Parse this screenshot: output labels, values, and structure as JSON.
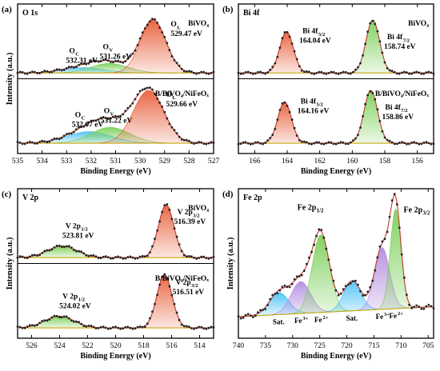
{
  "chart_data": [
    {
      "panel": "(a)",
      "type": "line",
      "element": "O 1s",
      "xlabel": "Binding Energy (eV)",
      "ylabel": "Intensity (a.u.)",
      "xlim": [
        535,
        527
      ],
      "xticks": [
        "535",
        "534",
        "533",
        "532",
        "531",
        "530",
        "529",
        "528",
        "527"
      ],
      "grid": false,
      "spectra": [
        {
          "sample": "BiVO4",
          "peaks": [
            {
              "label": "OC",
              "label_main": "O",
              "label_sub": "C",
              "energy": "532.31 eV",
              "center": 532.31,
              "height": 0.1,
              "width": 0.85,
              "color": "#4fc3f7"
            },
            {
              "label": "OV",
              "label_main": "O",
              "label_sub": "V",
              "energy": "531.26 eV",
              "center": 531.26,
              "height": 0.18,
              "width": 0.75,
              "color": "#7ccf5a"
            },
            {
              "label": "OL",
              "label_main": "O",
              "label_sub": "L",
              "energy": "529.47 eV",
              "center": 529.47,
              "height": 1.0,
              "width": 0.52,
              "color": "#e8603c"
            }
          ]
        },
        {
          "sample": "B/BiVO4/NiFeOx",
          "peaks": [
            {
              "label": "OC",
              "label_main": "O",
              "label_sub": "C",
              "energy": "532.07 eV",
              "center": 532.07,
              "height": 0.22,
              "width": 0.9,
              "color": "#4fc3f7"
            },
            {
              "label": "OV",
              "label_main": "O",
              "label_sub": "V",
              "energy": "531.22 eV",
              "center": 531.22,
              "height": 0.3,
              "width": 0.8,
              "color": "#7ccf5a"
            },
            {
              "label": "OL",
              "label_main": "O",
              "label_sub": "L",
              "energy": "529.66 eV",
              "center": 529.66,
              "height": 1.0,
              "width": 0.62,
              "color": "#e8603c"
            }
          ]
        }
      ]
    },
    {
      "panel": "(b)",
      "type": "line",
      "element": "Bi 4f",
      "xlabel": "Binding Energy (eV)",
      "ylabel": "",
      "xlim": [
        167,
        155
      ],
      "xticks": [
        "166",
        "164",
        "162",
        "160",
        "158",
        "156"
      ],
      "grid": false,
      "spectra": [
        {
          "sample": "BiVO4",
          "peaks": [
            {
              "label": "Bi 4f5/2",
              "label_main": "Bi 4f",
              "label_sub": "5/2",
              "energy": "164.04 eV",
              "center": 164.04,
              "height": 0.78,
              "width": 0.42,
              "color": "#e8603c"
            },
            {
              "label": "Bi 4f7/2",
              "label_main": "Bi 4f",
              "label_sub": "7/2",
              "energy": "158.74 eV",
              "center": 158.74,
              "height": 1.0,
              "width": 0.42,
              "color": "#7ccf5a"
            }
          ]
        },
        {
          "sample": "B/BiVO4/NiFeOx",
          "peaks": [
            {
              "label": "Bi 4f5/2",
              "label_main": "Bi 4f",
              "label_sub": "5/2",
              "energy": "164.16 eV",
              "center": 164.16,
              "height": 0.78,
              "width": 0.42,
              "color": "#e8603c"
            },
            {
              "label": "Bi 4f7/2",
              "label_main": "Bi 4f",
              "label_sub": "7/2",
              "energy": "158.86 eV",
              "center": 158.86,
              "height": 1.0,
              "width": 0.42,
              "color": "#7ccf5a"
            }
          ]
        }
      ]
    },
    {
      "panel": "(c)",
      "type": "line",
      "element": "V 2p",
      "xlabel": "Binding Energy (eV)",
      "ylabel": "Intensity (a.u.)",
      "xlim": [
        527,
        513
      ],
      "xticks": [
        "526",
        "524",
        "522",
        "520",
        "518",
        "516",
        "514"
      ],
      "grid": false,
      "spectra": [
        {
          "sample": "BiVO4",
          "peaks": [
            {
              "label": "V 2p1/2",
              "label_main": "V 2p",
              "label_sub": "1/2",
              "energy": "523.81 eV",
              "center": 523.81,
              "height": 0.22,
              "width": 1.05,
              "color": "#7ccf5a"
            },
            {
              "label": "V 2p3/2",
              "label_main": "V 2p",
              "label_sub": "3/2",
              "energy": "516.39 eV",
              "center": 516.39,
              "height": 1.0,
              "width": 0.55,
              "color": "#e8603c"
            }
          ]
        },
        {
          "sample": "B/BiVO4/NiFeOx",
          "peaks": [
            {
              "label": "V 2p1/2",
              "label_main": "V 2p",
              "label_sub": "1/2",
              "energy": "524.02 eV",
              "center": 524.02,
              "height": 0.22,
              "width": 1.05,
              "color": "#7ccf5a"
            },
            {
              "label": "V 2p3/2",
              "label_main": "V 2p",
              "label_sub": "3/2",
              "energy": "516.51 eV",
              "center": 516.51,
              "height": 1.0,
              "width": 0.55,
              "color": "#e8603c"
            }
          ]
        }
      ]
    },
    {
      "panel": "(d)",
      "type": "line",
      "element": "Fe 2p",
      "xlabel": "Binding Energy (eV)",
      "ylabel": "Intensity (a.u.)",
      "xlim": [
        740,
        704
      ],
      "xticks": [
        "740",
        "735",
        "730",
        "725",
        "720",
        "715",
        "710",
        "705"
      ],
      "grid": false,
      "spectra": [
        {
          "sample": "",
          "peaks": [
            {
              "label": "Sat.",
              "label_main": "Sat.",
              "label_sub": "",
              "center": 732.5,
              "height": 0.22,
              "width": 1.8,
              "color": "#4fc3f7"
            },
            {
              "label": "Fe3+",
              "label_main": "Fe",
              "label_sub": "3+",
              "center": 728.5,
              "height": 0.32,
              "width": 1.8,
              "color": "#b48de0"
            },
            {
              "label": "Fe2+",
              "label_main": "Fe",
              "label_sub": "2+",
              "center": 724.8,
              "height": 0.78,
              "width": 1.6,
              "color": "#7ccf5a"
            },
            {
              "label": "Sat.",
              "label_main": "Sat.",
              "label_sub": "",
              "center": 719.0,
              "height": 0.3,
              "width": 1.6,
              "color": "#4fc3f7"
            },
            {
              "label": "Fe3+",
              "label_main": "Fe",
              "label_sub": "3+",
              "center": 713.5,
              "height": 0.62,
              "width": 1.4,
              "color": "#b48de0"
            },
            {
              "label": "Fe2+",
              "label_main": "Fe",
              "label_sub": "2+",
              "center": 711.0,
              "height": 1.0,
              "width": 1.0,
              "color": "#7ccf5a"
            }
          ],
          "doublet_labels": [
            {
              "label": "Fe 2p1/2",
              "label_main": "Fe 2p",
              "label_sub": "1/2"
            },
            {
              "label": "Fe 2p3/2",
              "label_main": "Fe 2p",
              "label_sub": "3/2"
            }
          ]
        }
      ]
    }
  ]
}
